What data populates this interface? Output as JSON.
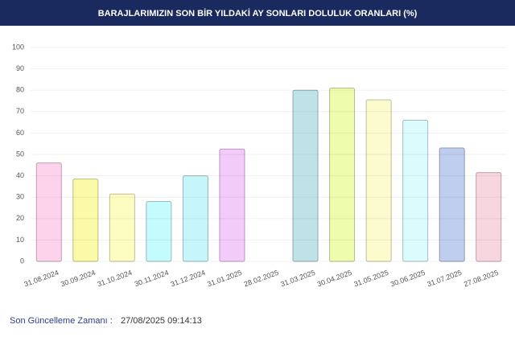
{
  "chart_data": {
    "type": "bar",
    "title": "BARAJLARIMIZIN SON BİR YILDAKİ AY SONLARI DOLULUK ORANLARI (%)",
    "categories": [
      "31.08.2024",
      "30.09.2024",
      "31.10.2024",
      "30.11.2024",
      "31.12.2024",
      "31.01.2025",
      "28.02.2025",
      "31.03.2025",
      "30.04.2025",
      "31.05.2025",
      "30.06.2025",
      "31.07.2025",
      "27.08.2025"
    ],
    "values": [
      46,
      38.5,
      31.5,
      28,
      40,
      52.5,
      null,
      80,
      81,
      75.5,
      66,
      53,
      41.5
    ],
    "colors": [
      "#fdd3ec",
      "#fafaa8",
      "#fdfdc2",
      "#c4fbfd",
      "#c6f6fb",
      "#f2cbfa",
      null,
      "#bfe2e8",
      "#eefcae",
      "#fcfbcd",
      "#dcfbfd",
      "#bfcdee",
      "#f8d6e0"
    ],
    "ylim": [
      0,
      100
    ],
    "yticks": [
      0,
      10,
      20,
      30,
      40,
      50,
      60,
      70,
      80,
      90,
      100
    ],
    "grid": true
  },
  "footer": {
    "label": "Son Güncelleme Zamanı :",
    "value": "27/08/2025 09:14:13"
  }
}
